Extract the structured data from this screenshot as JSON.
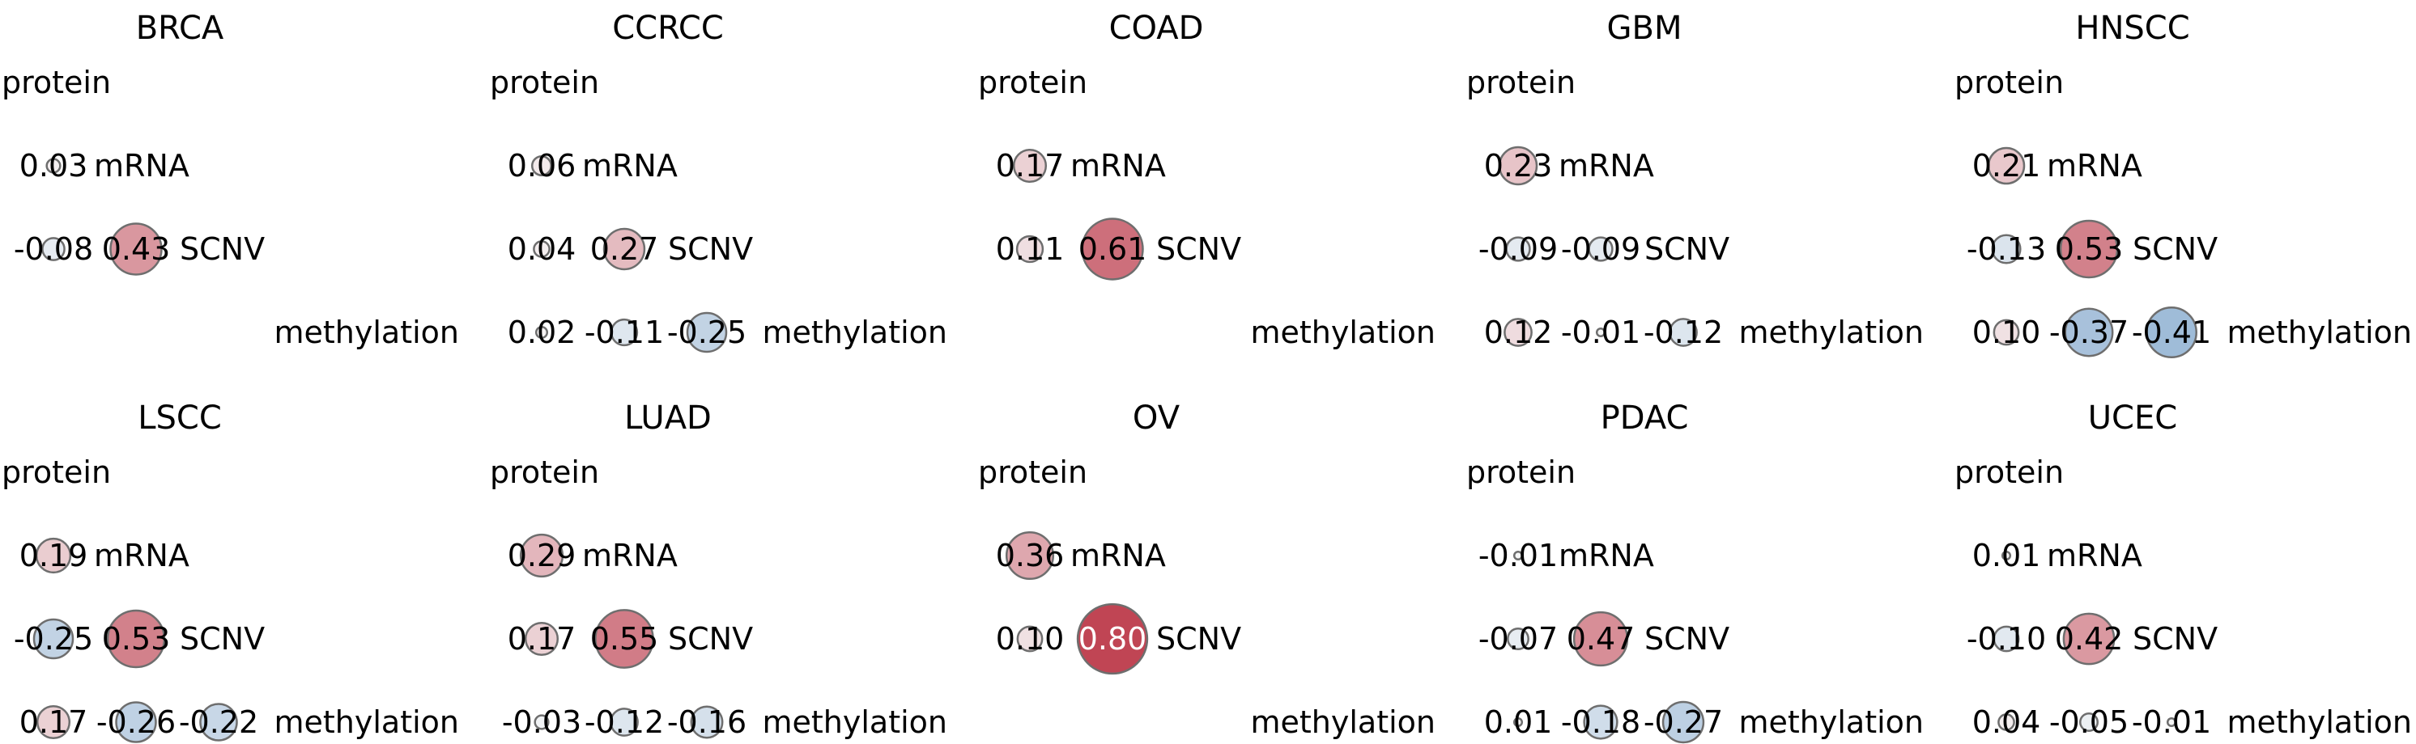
{
  "chart_data": {
    "type": "correlation-matrix-grid",
    "row_labels": [
      "protein",
      "mRNA",
      "SCNV",
      "methylation"
    ],
    "color_scale": {
      "negative": "#2166ac",
      "positive": "#b2182b",
      "neutral": "#f7f7f7",
      "range": [
        -1,
        1
      ]
    },
    "panels": [
      {
        "title": "BRCA",
        "mRNA": [
          "0.03"
        ],
        "SCNV": [
          "-0.08",
          "0.43"
        ],
        "methylation": []
      },
      {
        "title": "CCRCC",
        "mRNA": [
          "0.06"
        ],
        "SCNV": [
          "0.04",
          "0.27"
        ],
        "methylation": [
          "0.02",
          "-0.11",
          "-0.25"
        ]
      },
      {
        "title": "COAD",
        "mRNA": [
          "0.17"
        ],
        "SCNV": [
          "0.11",
          "0.61"
        ],
        "methylation": []
      },
      {
        "title": "GBM",
        "mRNA": [
          "0.23"
        ],
        "SCNV": [
          "-0.09",
          "-0.09"
        ],
        "methylation": [
          "0.12",
          "-0.01",
          "-0.12"
        ]
      },
      {
        "title": "HNSCC",
        "mRNA": [
          "0.21"
        ],
        "SCNV": [
          "-0.13",
          "0.53"
        ],
        "methylation": [
          "0.10",
          "-0.37",
          "-0.41"
        ]
      },
      {
        "title": "LSCC",
        "mRNA": [
          "0.19"
        ],
        "SCNV": [
          "-0.25",
          "0.53"
        ],
        "methylation": [
          "0.17",
          "-0.26",
          "-0.22"
        ]
      },
      {
        "title": "LUAD",
        "mRNA": [
          "0.29"
        ],
        "SCNV": [
          "0.17",
          "0.55"
        ],
        "methylation": [
          "-0.03",
          "-0.12",
          "-0.16"
        ]
      },
      {
        "title": "OV",
        "mRNA": [
          "0.36"
        ],
        "SCNV": [
          "0.10",
          "0.80"
        ],
        "methylation": []
      },
      {
        "title": "PDAC",
        "mRNA": [
          "-0.01"
        ],
        "SCNV": [
          "-0.07",
          "0.47"
        ],
        "methylation": [
          "0.01",
          "-0.18",
          "-0.27"
        ]
      },
      {
        "title": "UCEC",
        "mRNA": [
          "0.01"
        ],
        "SCNV": [
          "-0.10",
          "0.42"
        ],
        "methylation": [
          "0.04",
          "-0.05",
          "-0.01"
        ]
      }
    ]
  }
}
